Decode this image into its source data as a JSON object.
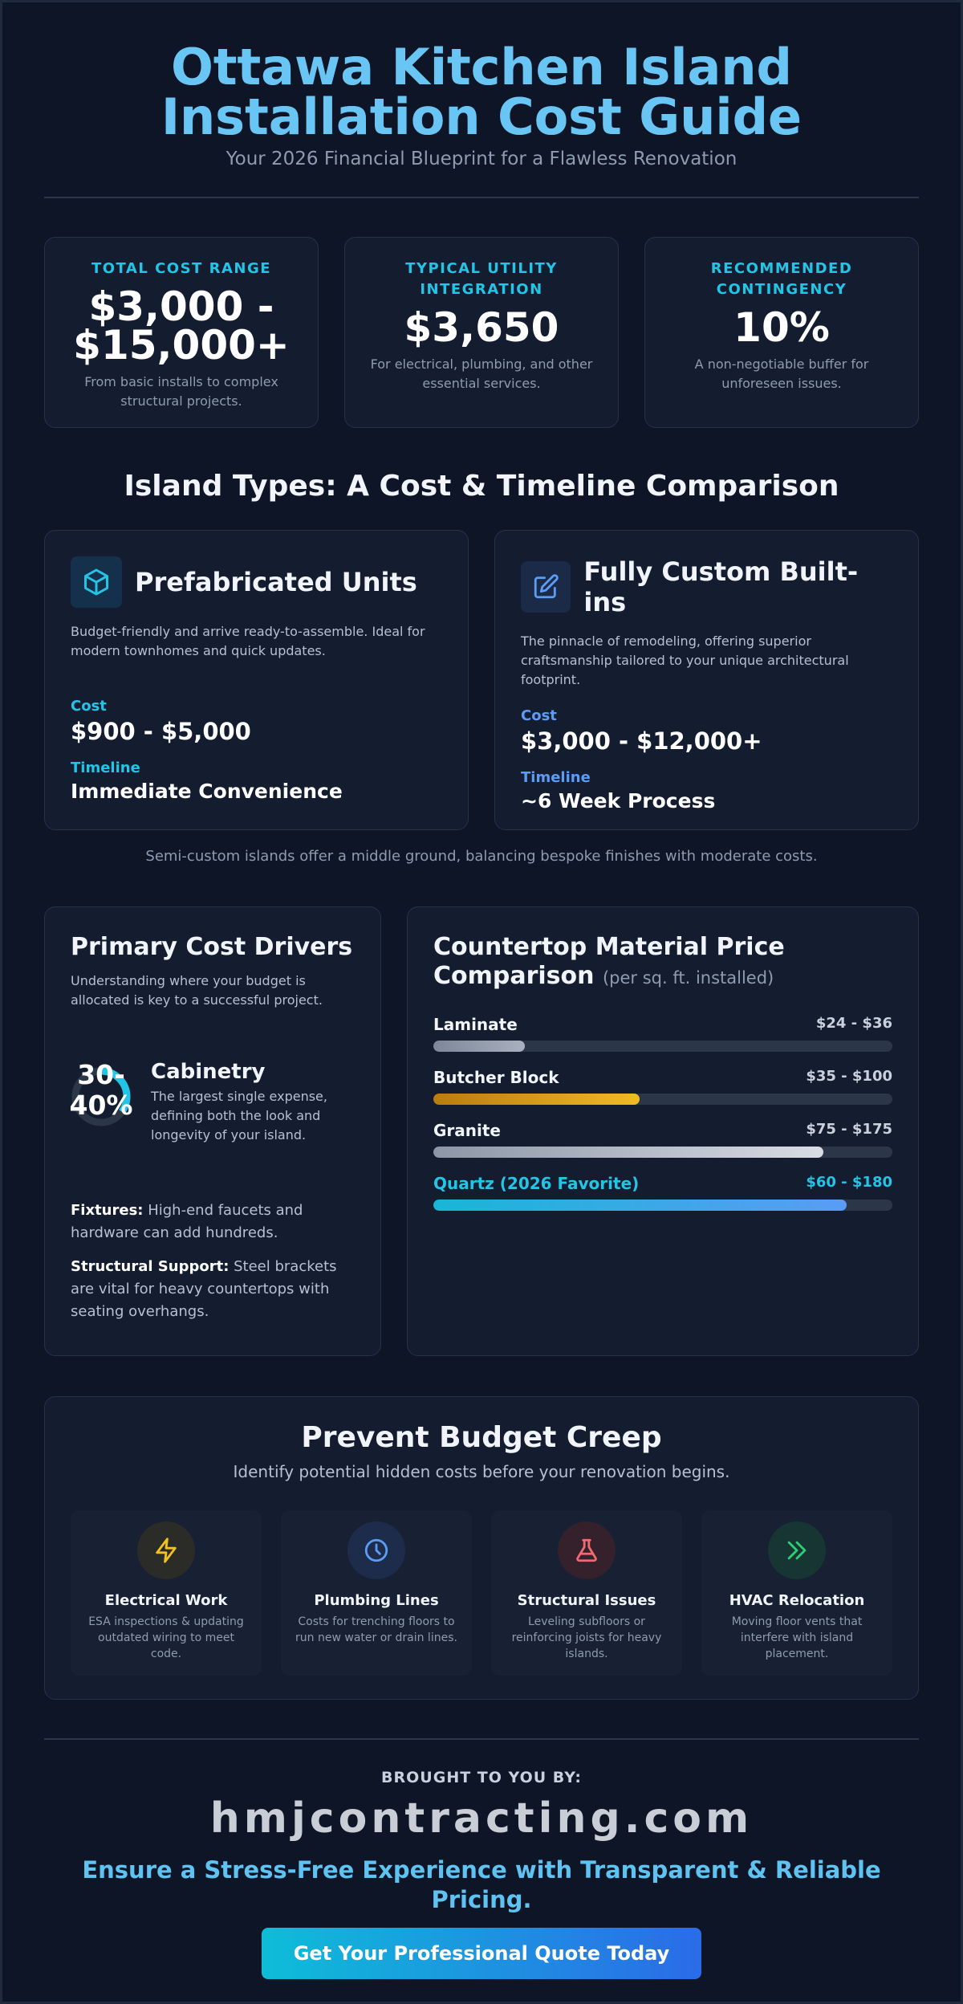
{
  "header": {
    "title_line1": "Ottawa Kitchen Island",
    "title_line2": "Installation Cost Guide",
    "subtitle": "Your 2026 Financial Blueprint for a Flawless Renovation"
  },
  "stats": [
    {
      "label": "TOTAL COST RANGE",
      "value_line1": "$3,000 -",
      "value_line2": "$15,000+",
      "desc": "From basic installs to complex structural projects."
    },
    {
      "label": "TYPICAL UTILITY INTEGRATION",
      "value": "$3,650",
      "desc": "For electrical, plumbing, and other essential services."
    },
    {
      "label": "RECOMMENDED CONTINGENCY",
      "value": "10%",
      "desc": "A non-negotiable buffer for unforeseen issues."
    }
  ],
  "types_section": {
    "title": "Island Types: A Cost & Timeline Comparison",
    "types": [
      {
        "icon": "cube-icon",
        "name": "Prefabricated Units",
        "desc": "Budget-friendly and arrive ready-to-assemble. Ideal for modern townhomes and quick updates.",
        "cost_label": "Cost",
        "cost": "$900 - $5,000",
        "timeline_label": "Timeline",
        "timeline": "Immediate Convenience",
        "accent": "#22c5e6"
      },
      {
        "icon": "edit-icon",
        "name": "Fully Custom Built-ins",
        "desc": "The pinnacle of remodeling, offering superior craftsmanship tailored to your unique architectural footprint.",
        "cost_label": "Cost",
        "cost": "$3,000 - $12,000+",
        "timeline_label": "Timeline",
        "timeline": "~6 Week Process",
        "accent": "#5b9cf5"
      }
    ],
    "note": "Semi-custom islands offer a middle ground, balancing bespoke finishes with moderate costs."
  },
  "drivers": {
    "title": "Primary Cost Drivers",
    "subtitle": "Understanding where your budget is allocated is key to a successful project.",
    "cabinetry": {
      "percent_line1": "30-",
      "percent_line2": "40%",
      "share": 0.35,
      "name": "Cabinetry",
      "desc": "The largest single expense, defining both the look and longevity of your island."
    },
    "items": [
      {
        "label": "Fixtures:",
        "text": " High-end faucets and hardware can add hundreds."
      },
      {
        "label": "Structural Support:",
        "text": " Steel brackets are vital for heavy countertops with seating overhangs."
      }
    ]
  },
  "countertops": {
    "title_line1": "Countertop Material Price",
    "title_line2": "Comparison",
    "unit": "(per sq. ft. installed)",
    "materials": [
      {
        "name": "Laminate",
        "price": "$24 - $36",
        "level": 0.2,
        "fill": "linear-gradient(90deg,#7d8799,#a9b1be)",
        "name_color": "#f1f4f8",
        "price_color": "#c9d1dd"
      },
      {
        "name": "Butcher Block",
        "price": "$35 - $100",
        "level": 0.45,
        "fill": "linear-gradient(90deg,#b97c10,#f0bb24)",
        "name_color": "#f1f4f8",
        "price_color": "#c9d1dd"
      },
      {
        "name": "Granite",
        "price": "$75 - $175",
        "level": 0.85,
        "fill": "linear-gradient(90deg,#8c96a6,#d9dde3)",
        "name_color": "#f1f4f8",
        "price_color": "#c9d1dd"
      },
      {
        "name": "Quartz (2026 Favorite)",
        "price": "$60 - $180",
        "level": 0.9,
        "fill": "linear-gradient(90deg,#18b6d6,#5a9cf5)",
        "name_color": "#22c5e6",
        "price_color": "#22c5e6"
      }
    ]
  },
  "budget_creep": {
    "title": "Prevent Budget Creep",
    "subtitle": "Identify potential hidden costs before your renovation begins.",
    "costs": [
      {
        "icon": "lightning-icon",
        "name": "Electrical Work",
        "desc": "ESA inspections & updating outdated wiring to meet code.",
        "color": "#f2c21d",
        "bg": "#2b2c28"
      },
      {
        "icon": "clock-icon",
        "name": "Plumbing Lines",
        "desc": "Costs for trenching floors to run new water or drain lines.",
        "color": "#5b9cf5",
        "bg": "#1d2c4a"
      },
      {
        "icon": "flask-icon",
        "name": "Structural Issues",
        "desc": "Leveling subfloors or reinforcing joists for heavy islands.",
        "color": "#f06a72",
        "bg": "#35212b"
      },
      {
        "icon": "chevrons-right-icon",
        "name": "HVAC Relocation",
        "desc": "Moving floor vents that interfere with island placement.",
        "color": "#2ccf74",
        "bg": "#163533"
      }
    ]
  },
  "footer": {
    "brought": "BROUGHT TO YOU BY:",
    "site": "hmjcontracting.com",
    "tagline": "Ensure a Stress-Free Experience with Transparent & Reliable Pricing.",
    "cta": "Get Your Professional Quote Today"
  }
}
